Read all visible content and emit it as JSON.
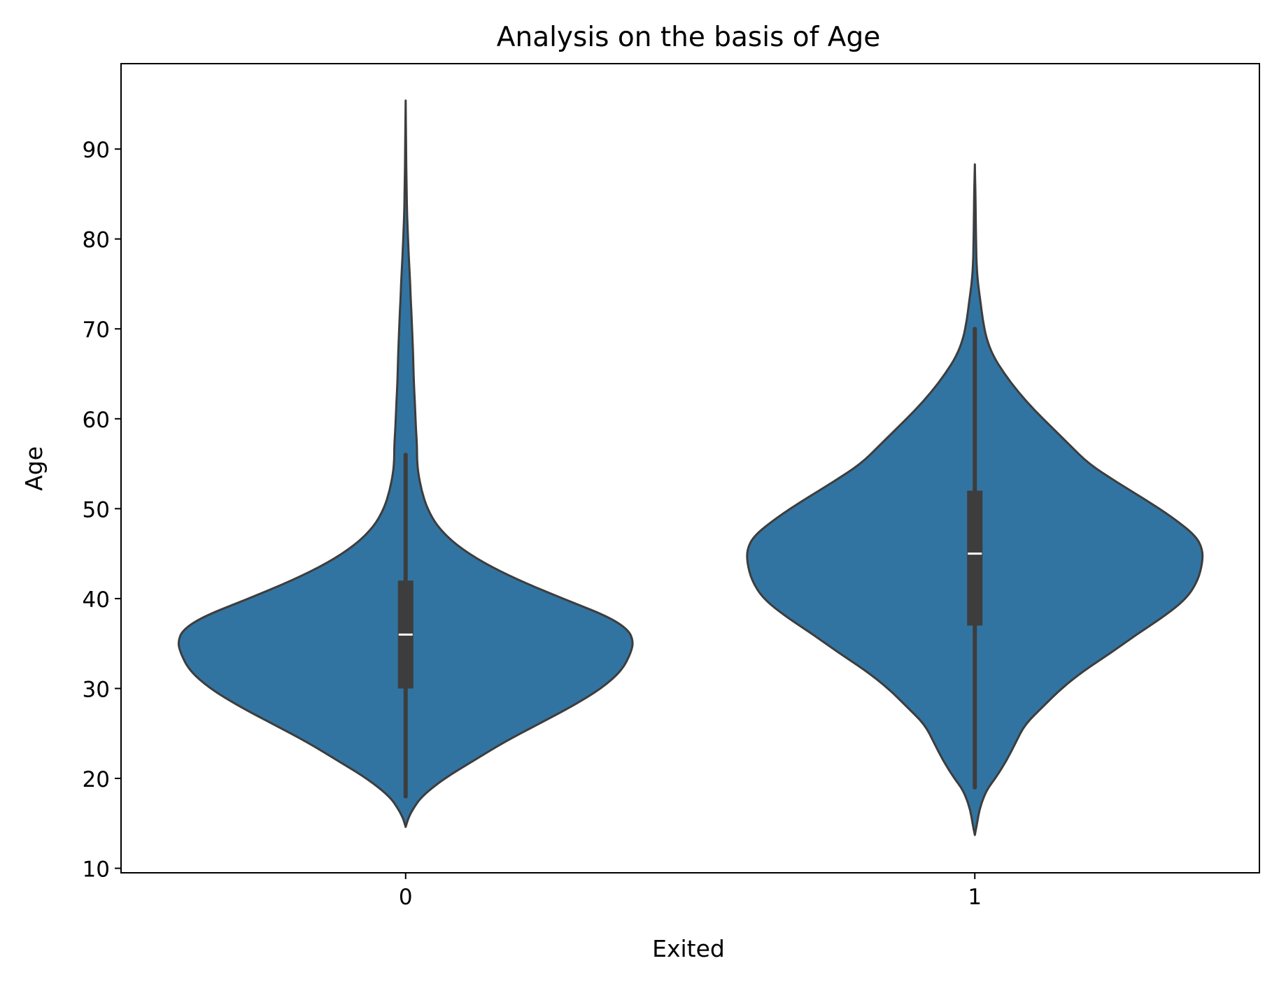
{
  "chart_data": {
    "type": "violin",
    "title": "Analysis on the basis of Age",
    "xlabel": "Exited",
    "ylabel": "Age",
    "ylim": [
      9.5,
      99.5
    ],
    "yticks": [
      10,
      20,
      30,
      40,
      50,
      60,
      70,
      80,
      90
    ],
    "categories": [
      "0",
      "1"
    ],
    "fill_color": "#3274a1",
    "edge_color": "#3d3d3d",
    "grid": false,
    "legend": "none",
    "violins": [
      {
        "category": "0",
        "min": 18,
        "q1": 30,
        "median": 36,
        "q3": 42,
        "whisker_low": 18,
        "whisker_high": 56,
        "extent": [
          14.6,
          95.4
        ],
        "density": [
          [
            14.6,
            0.0
          ],
          [
            15.5,
            0.01
          ],
          [
            16.5,
            0.03
          ],
          [
            18,
            0.07
          ],
          [
            20,
            0.17
          ],
          [
            22,
            0.3
          ],
          [
            24,
            0.43
          ],
          [
            26,
            0.58
          ],
          [
            28,
            0.73
          ],
          [
            30,
            0.86
          ],
          [
            32,
            0.95
          ],
          [
            34,
            0.99
          ],
          [
            35.2,
            1.0
          ],
          [
            36.5,
            0.98
          ],
          [
            38,
            0.89
          ],
          [
            40,
            0.69
          ],
          [
            42,
            0.5
          ],
          [
            44,
            0.34
          ],
          [
            46,
            0.22
          ],
          [
            48,
            0.14
          ],
          [
            50,
            0.095
          ],
          [
            52,
            0.07
          ],
          [
            54,
            0.055
          ],
          [
            55.5,
            0.05
          ],
          [
            57,
            0.05
          ],
          [
            59,
            0.045
          ],
          [
            61,
            0.042
          ],
          [
            63,
            0.038
          ],
          [
            65,
            0.035
          ],
          [
            67,
            0.033
          ],
          [
            69,
            0.03
          ],
          [
            71,
            0.027
          ],
          [
            73,
            0.023
          ],
          [
            75,
            0.02
          ],
          [
            77,
            0.016
          ],
          [
            79,
            0.012
          ],
          [
            81,
            0.009
          ],
          [
            83,
            0.006
          ],
          [
            86,
            0.004
          ],
          [
            90,
            0.002
          ],
          [
            95.4,
            0.0
          ]
        ]
      },
      {
        "category": "1",
        "min": 19,
        "q1": 37,
        "median": 45,
        "q3": 52,
        "whisker_low": 19,
        "whisker_high": 70,
        "extent": [
          13.7,
          88.3
        ],
        "density": [
          [
            13.7,
            0.0
          ],
          [
            15,
            0.01
          ],
          [
            16.5,
            0.02
          ],
          [
            18,
            0.04
          ],
          [
            19,
            0.06
          ],
          [
            20,
            0.09
          ],
          [
            22,
            0.14
          ],
          [
            24,
            0.18
          ],
          [
            26,
            0.22
          ],
          [
            28,
            0.3
          ],
          [
            30,
            0.38
          ],
          [
            32,
            0.48
          ],
          [
            34,
            0.6
          ],
          [
            36,
            0.71
          ],
          [
            38,
            0.83
          ],
          [
            40,
            0.93
          ],
          [
            42,
            0.98
          ],
          [
            44,
            1.0
          ],
          [
            45.5,
            1.0
          ],
          [
            47,
            0.97
          ],
          [
            49,
            0.87
          ],
          [
            51,
            0.75
          ],
          [
            53,
            0.62
          ],
          [
            55,
            0.5
          ],
          [
            57,
            0.42
          ],
          [
            59,
            0.34
          ],
          [
            61,
            0.26
          ],
          [
            63,
            0.19
          ],
          [
            65,
            0.13
          ],
          [
            67,
            0.08
          ],
          [
            69,
            0.05
          ],
          [
            71,
            0.035
          ],
          [
            73,
            0.025
          ],
          [
            75,
            0.014
          ],
          [
            77,
            0.008
          ],
          [
            79,
            0.006
          ],
          [
            82,
            0.004
          ],
          [
            85,
            0.003
          ],
          [
            88.3,
            0.0
          ]
        ]
      }
    ]
  }
}
